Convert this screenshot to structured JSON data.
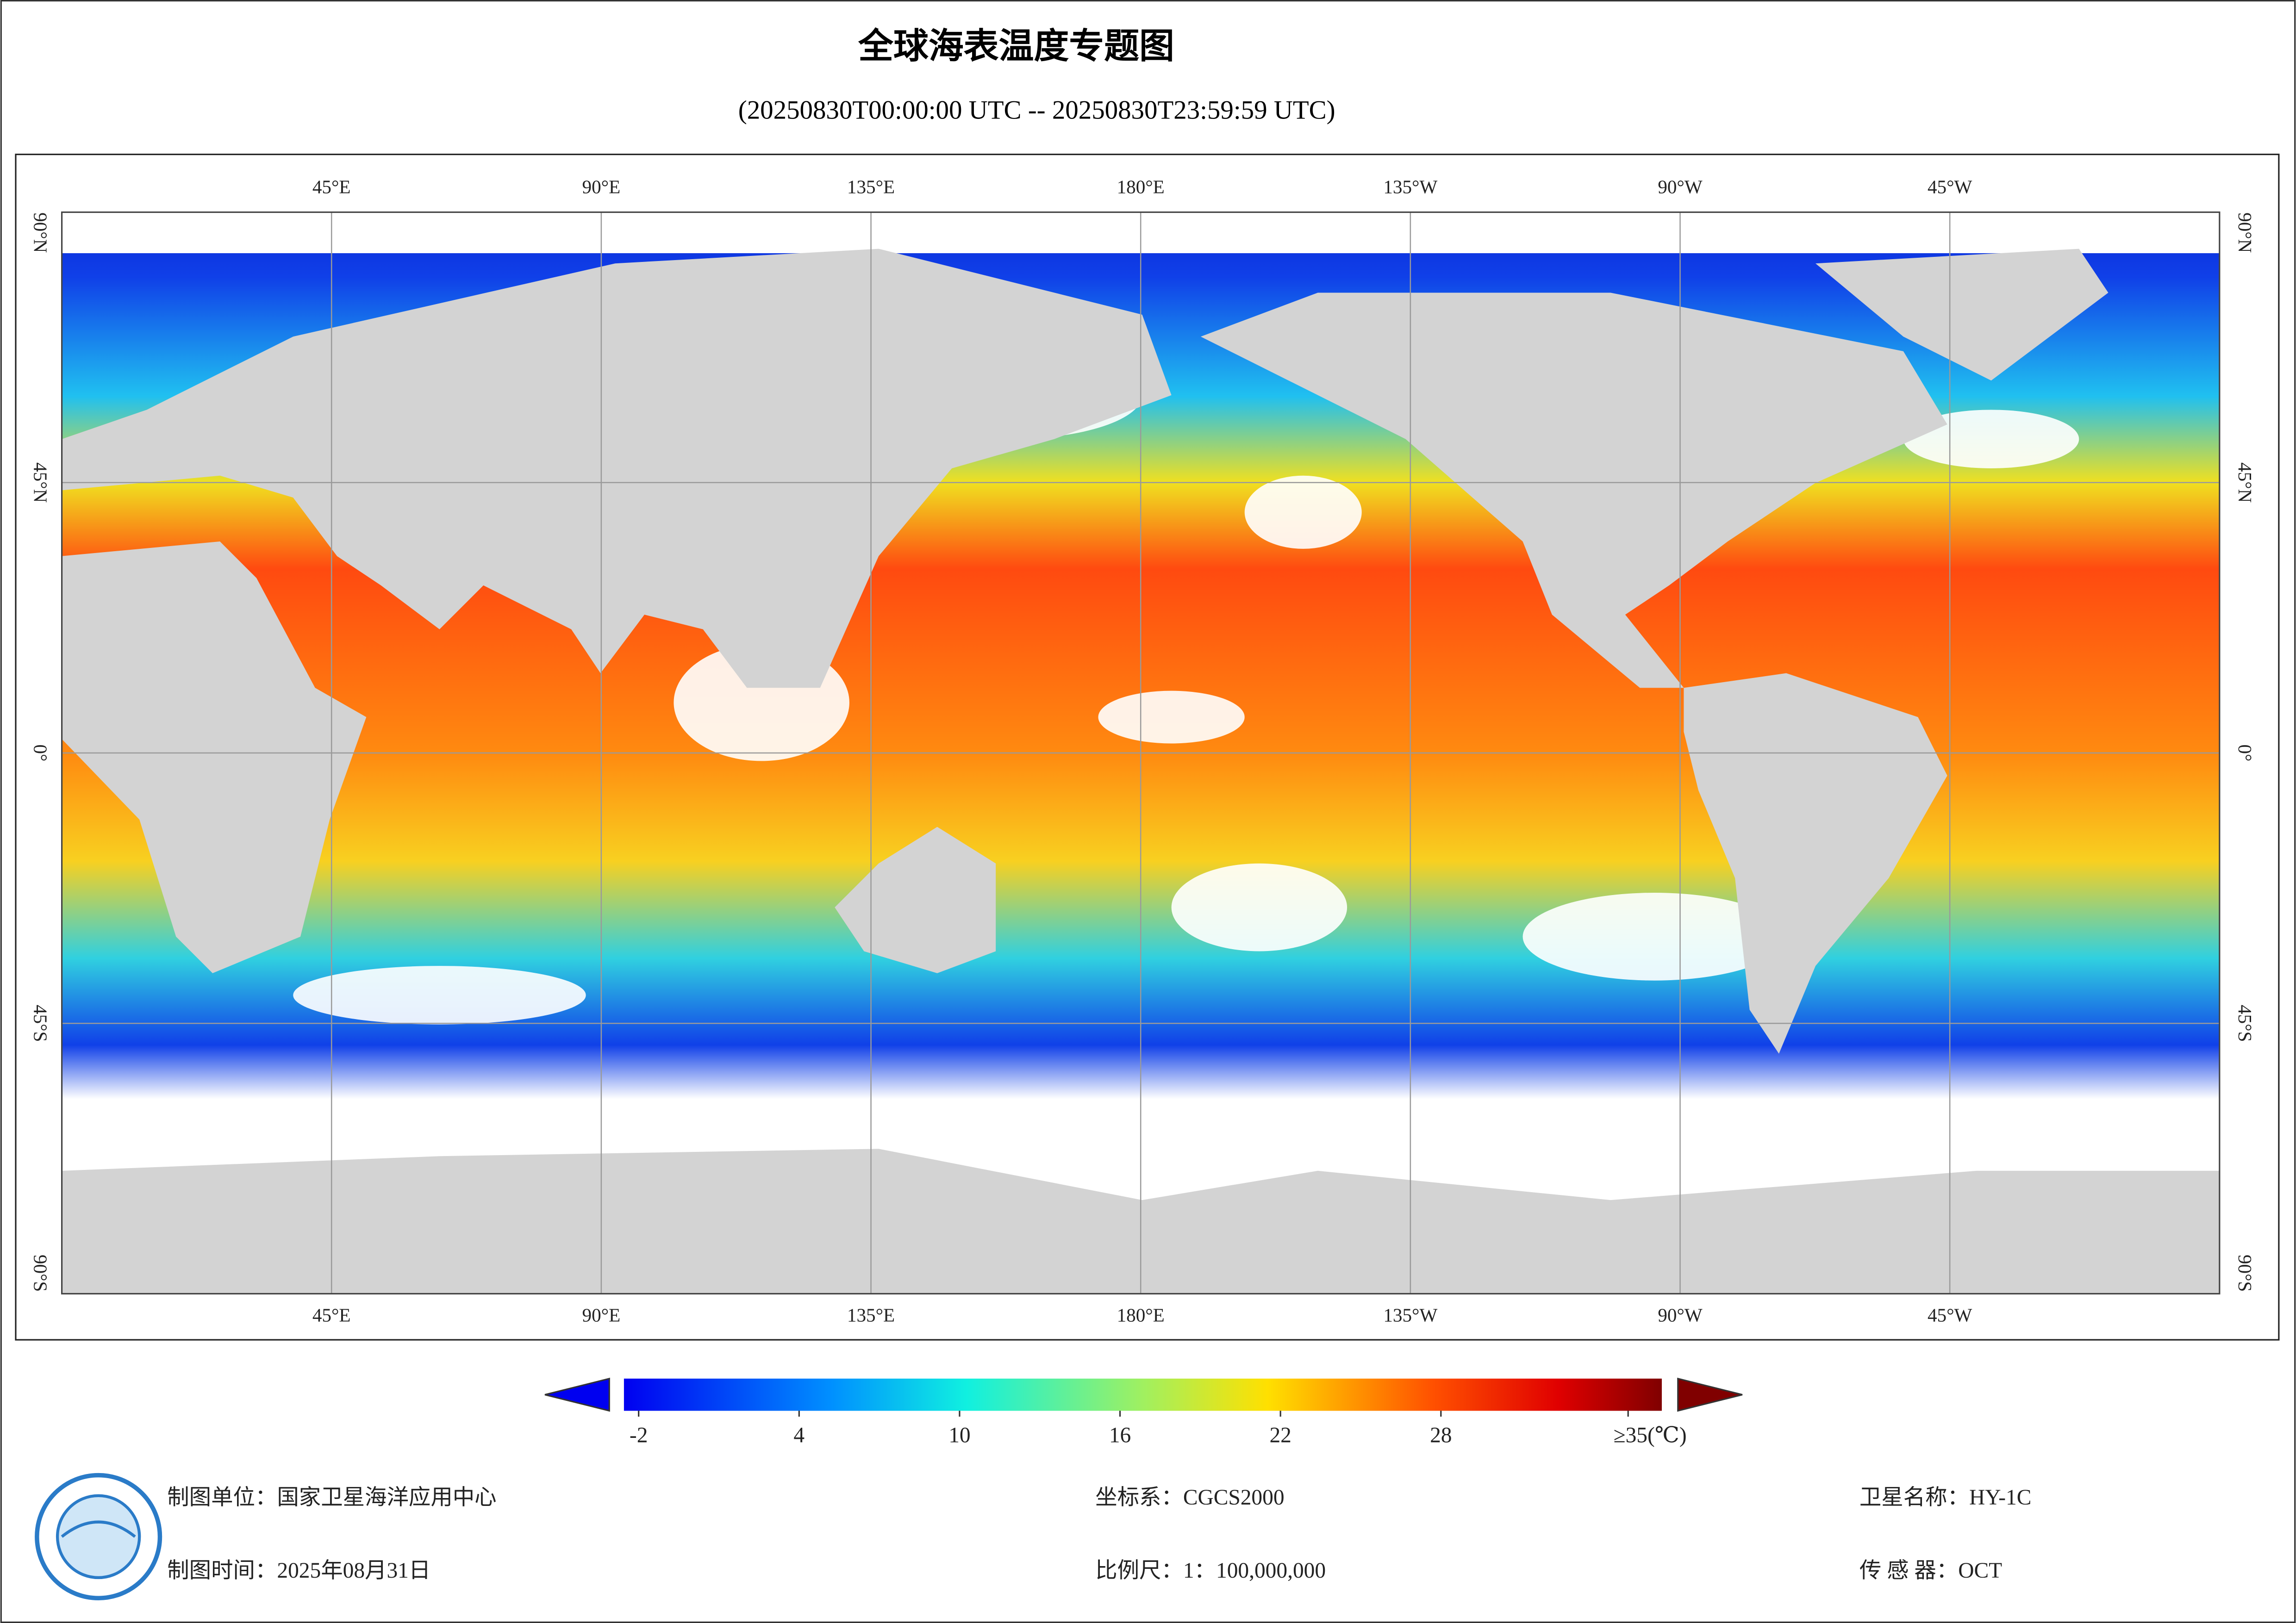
{
  "title": "全球海表温度专题图",
  "subtitle": "(20250830T00:00:00 UTC -- 20250830T23:59:59 UTC)",
  "map": {
    "lon_range": [
      0,
      360
    ],
    "lat_range": [
      -90,
      90
    ],
    "lon_ticks": [
      {
        "value": 45,
        "label": "45°E"
      },
      {
        "value": 90,
        "label": "90°E"
      },
      {
        "value": 135,
        "label": "135°E"
      },
      {
        "value": 180,
        "label": "180°E"
      },
      {
        "value": 225,
        "label": "135°W"
      },
      {
        "value": 270,
        "label": "90°W"
      },
      {
        "value": 315,
        "label": "45°W"
      }
    ],
    "lat_ticks": [
      {
        "value": 90,
        "label": "90°N"
      },
      {
        "value": 45,
        "label": "45°N"
      },
      {
        "value": 0,
        "label": "0°"
      },
      {
        "value": -45,
        "label": "45°S"
      },
      {
        "value": -90,
        "label": "90°S"
      }
    ]
  },
  "colorbar": {
    "range": [
      -2.55,
      36.26
    ],
    "ticks": [
      -2,
      4,
      10,
      16,
      22,
      28,
      {
        "value": 35,
        "label": "≥35(℃)"
      }
    ]
  },
  "footer": {
    "org": "制图单位：国家卫星海洋应用中心",
    "date": "制图时间：2025年08月31日",
    "crs": "坐标系：CGCS2000",
    "scale": "比例尺：1：100,000,000",
    "satellite": "卫星名称：HY-1C",
    "sensor": "传 感 器：OCT"
  }
}
